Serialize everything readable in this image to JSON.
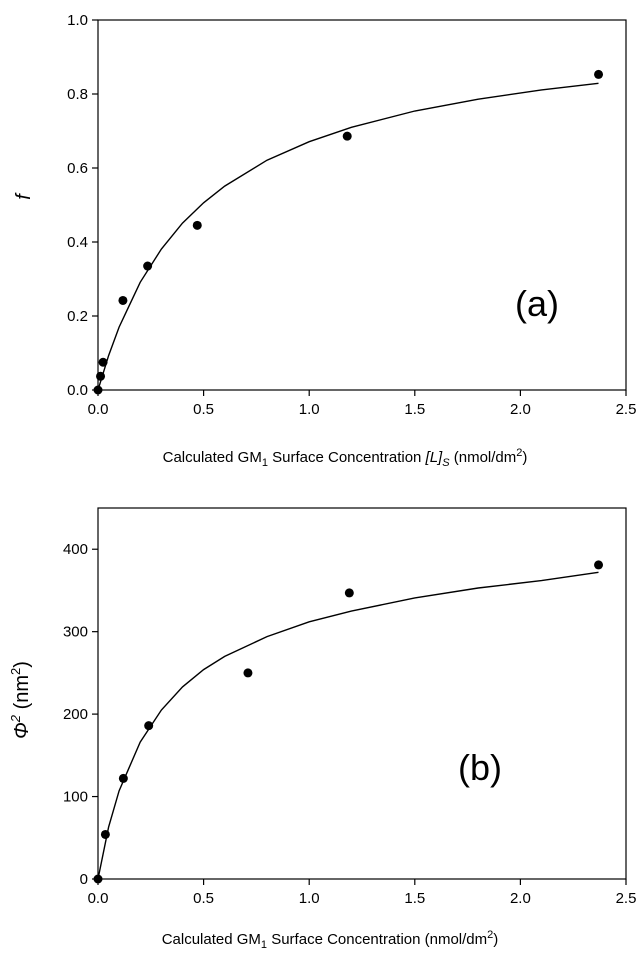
{
  "chart_data": [
    {
      "type": "scatter",
      "panel_label": "(a)",
      "xlabel": {
        "part1": "Calculated GM",
        "sub": "1",
        "part2": " Surface Concentration ",
        "italic": "[L]",
        "italic_sub": "S",
        "part3": " (nmol/dm",
        "sup": "2",
        "part4": ")"
      },
      "ylabel": "f",
      "xlim": [
        0,
        2.5
      ],
      "ylim": [
        0,
        1.0
      ],
      "xticks": [
        "0.0",
        "0.5",
        "1.0",
        "1.5",
        "2.0",
        "2.5"
      ],
      "yticks": [
        "0.0",
        "0.2",
        "0.4",
        "0.6",
        "0.8",
        "1.0"
      ],
      "grid": false,
      "series": [
        {
          "kind": "points",
          "x": [
            0.0,
            0.012,
            0.024,
            0.118,
            0.235,
            0.47,
            1.18,
            2.37
          ],
          "y": [
            0.0,
            0.037,
            0.075,
            0.242,
            0.335,
            0.445,
            0.686,
            0.853
          ]
        },
        {
          "kind": "fit-line",
          "x": [
            0.0,
            0.05,
            0.1,
            0.2,
            0.3,
            0.4,
            0.5,
            0.6,
            0.8,
            1.0,
            1.2,
            1.5,
            1.8,
            2.1,
            2.37
          ],
          "y": [
            0.0,
            0.093,
            0.17,
            0.291,
            0.381,
            0.451,
            0.506,
            0.551,
            0.621,
            0.671,
            0.71,
            0.754,
            0.786,
            0.811,
            0.829
          ]
        }
      ],
      "colors": {
        "points": "#000000",
        "line": "#000000"
      }
    },
    {
      "type": "scatter",
      "panel_label": "(b)",
      "xlabel": {
        "part1": "Calculated GM",
        "sub": "1",
        "part2": " Surface Concentration (nmol/dm",
        "sup": "2",
        "part3": ")"
      },
      "ylabel": {
        "symbol": "Φ",
        "sup": "2",
        "unit": " (nm",
        "unit_sup": "2",
        "unit_end": ")"
      },
      "xlim": [
        0,
        2.5
      ],
      "ylim": [
        0,
        450
      ],
      "xticks": [
        "0.0",
        "0.5",
        "1.0",
        "1.5",
        "2.0",
        "2.5"
      ],
      "yticks": [
        "0",
        "100",
        "200",
        "300",
        "400"
      ],
      "grid": false,
      "series": [
        {
          "kind": "points",
          "x": [
            0.0,
            0.035,
            0.12,
            0.24,
            0.71,
            1.19,
            2.37
          ],
          "y": [
            0.0,
            54,
            122,
            186,
            250,
            347,
            381
          ]
        },
        {
          "kind": "fit-line",
          "x": [
            0.0,
            0.05,
            0.1,
            0.2,
            0.3,
            0.4,
            0.5,
            0.6,
            0.8,
            1.0,
            1.2,
            1.5,
            1.8,
            2.1,
            2.37
          ],
          "y": [
            0.0,
            63,
            107,
            166,
            205,
            233,
            254,
            270,
            294,
            312,
            325,
            341,
            353,
            362,
            372
          ]
        }
      ],
      "colors": {
        "points": "#000000",
        "line": "#000000"
      }
    }
  ]
}
